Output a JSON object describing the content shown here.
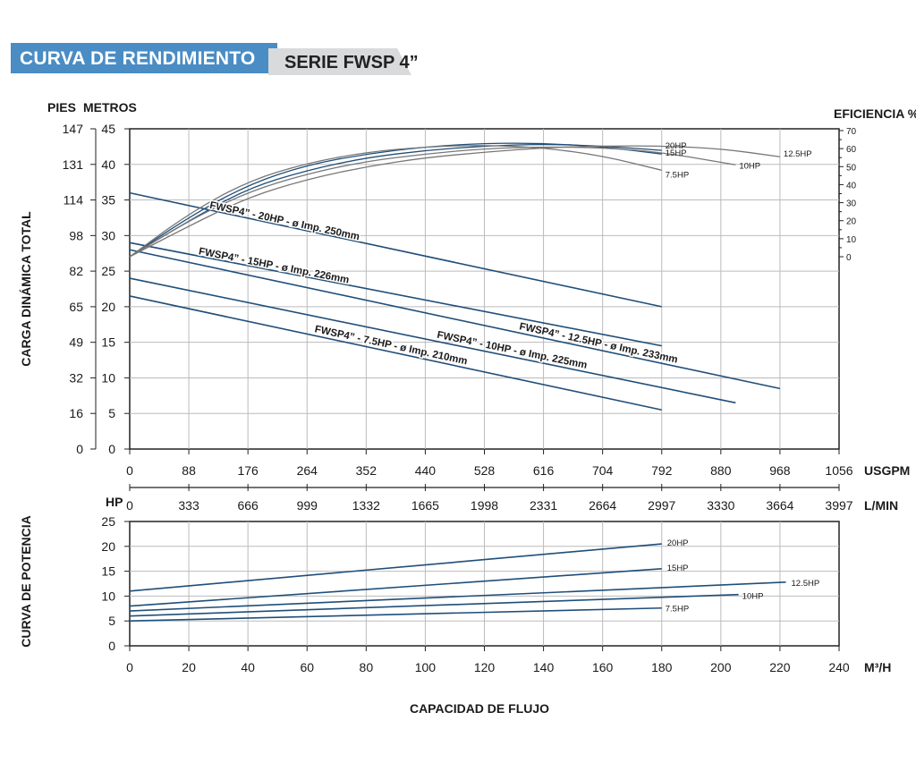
{
  "header": {
    "title": "CURVA DE RENDIMIENTO",
    "series": "SERIE FWSP 4”"
  },
  "colors": {
    "brand": "#4a8cc4",
    "curve": "#1f4e79",
    "efficiency": "#777777",
    "grid": "#bbbbbb"
  },
  "chart_data": [
    {
      "type": "line",
      "title": "",
      "left_axis_titles": [
        "PIES",
        "METROS"
      ],
      "ylabel": "CARGA DINÁMICA TOTAL",
      "right_axis_title": "EFICIENCIA %",
      "ylim": [
        0,
        45
      ],
      "y_ticks_metros": [
        0,
        5,
        10,
        15,
        20,
        25,
        30,
        35,
        40,
        45
      ],
      "y_ticks_pies": [
        "0",
        "16",
        "32",
        "49",
        "65",
        "82",
        "98",
        "114",
        "131",
        "147"
      ],
      "efficiency_ticks": [
        "0",
        "10",
        "20",
        "30",
        "40",
        "50",
        "60",
        "70"
      ],
      "efficiency_ylim": [
        0,
        70
      ],
      "x_usgpm_ticks": [
        "0",
        "88",
        "176",
        "264",
        "352",
        "440",
        "528",
        "616",
        "704",
        "792",
        "880",
        "968",
        "1056"
      ],
      "x_usgpm_label": "USGPM",
      "x_lmin_ticks": [
        "0",
        "333",
        "666",
        "999",
        "1332",
        "1665",
        "1998",
        "2331",
        "2664",
        "2997",
        "3330",
        "3664",
        "3997"
      ],
      "x_lmin_label": "L/MIN",
      "xlim_usgpm": [
        0,
        1056
      ],
      "grid": true,
      "head_series": [
        {
          "name": "FWSP4” - 20HP - ø Imp. 250mm",
          "x": [
            0,
            792
          ],
          "y": [
            36,
            20
          ]
        },
        {
          "name": "FWSP4” - 15HP - ø Imp. 226mm",
          "x": [
            0,
            792
          ],
          "y": [
            29,
            14.5
          ]
        },
        {
          "name": "FWSP4” - 12.5HP - ø Imp. 233mm",
          "x": [
            0,
            968
          ],
          "y": [
            28,
            8.5
          ]
        },
        {
          "name": "FWSP4” - 10HP - ø Imp. 225mm",
          "x": [
            0,
            902
          ],
          "y": [
            24,
            6.5
          ]
        },
        {
          "name": "FWSP4” - 7.5HP - ø Imp. 210mm",
          "x": [
            0,
            792
          ],
          "y": [
            21.5,
            5.5
          ]
        }
      ],
      "efficiency_series": [
        {
          "name": "20HP",
          "x": [
            0,
            88,
            176,
            264,
            352,
            440,
            528,
            616,
            704,
            792
          ],
          "y": [
            0,
            20,
            38,
            48,
            55,
            59,
            61.5,
            62.5,
            61.5,
            59
          ]
        },
        {
          "name": "15HP",
          "x": [
            0,
            88,
            176,
            264,
            352,
            440,
            528,
            616,
            704,
            792
          ],
          "y": [
            0,
            22,
            40,
            51,
            57,
            61,
            63,
            63,
            61,
            57
          ]
        },
        {
          "name": "12.5HP",
          "x": [
            0,
            88,
            176,
            264,
            352,
            440,
            528,
            616,
            704,
            792,
            880,
            968
          ],
          "y": [
            0,
            17,
            33,
            43,
            50,
            55,
            58,
            60.5,
            61.5,
            61.5,
            60,
            55.5
          ]
        },
        {
          "name": "10HP",
          "x": [
            0,
            88,
            176,
            264,
            352,
            440,
            528,
            616,
            704,
            792,
            902
          ],
          "y": [
            0,
            20,
            36,
            46,
            53,
            57,
            60,
            61,
            60.5,
            58,
            51
          ]
        },
        {
          "name": "7.5HP",
          "x": [
            0,
            88,
            176,
            264,
            352,
            440,
            528,
            616,
            704,
            792
          ],
          "y": [
            0,
            24,
            42,
            52,
            58,
            61,
            62,
            60.5,
            56,
            48
          ]
        }
      ]
    },
    {
      "type": "line",
      "title": "",
      "left_axis_title": "HP",
      "ylabel": "CURVA DE POTENCIA",
      "xlabel": "CAPACIDAD DE FLUJO",
      "x_unit_label": "M³/H",
      "ylim": [
        0,
        25
      ],
      "y_ticks": [
        "0",
        "5",
        "10",
        "15",
        "20",
        "25"
      ],
      "xlim": [
        0,
        240
      ],
      "x_ticks": [
        "0",
        "20",
        "40",
        "60",
        "80",
        "100",
        "120",
        "140",
        "160",
        "180",
        "200",
        "220",
        "240"
      ],
      "grid": true,
      "series": [
        {
          "name": "20HP",
          "x": [
            0,
            180
          ],
          "y": [
            11,
            20.5
          ]
        },
        {
          "name": "15HP",
          "x": [
            0,
            180
          ],
          "y": [
            8,
            15.5
          ]
        },
        {
          "name": "12.5HP",
          "x": [
            0,
            222
          ],
          "y": [
            7,
            12.8
          ]
        },
        {
          "name": "10HP",
          "x": [
            0,
            206
          ],
          "y": [
            6,
            10.3
          ]
        },
        {
          "name": "7.5HP",
          "x": [
            0,
            180
          ],
          "y": [
            5,
            7.6
          ]
        }
      ]
    }
  ]
}
